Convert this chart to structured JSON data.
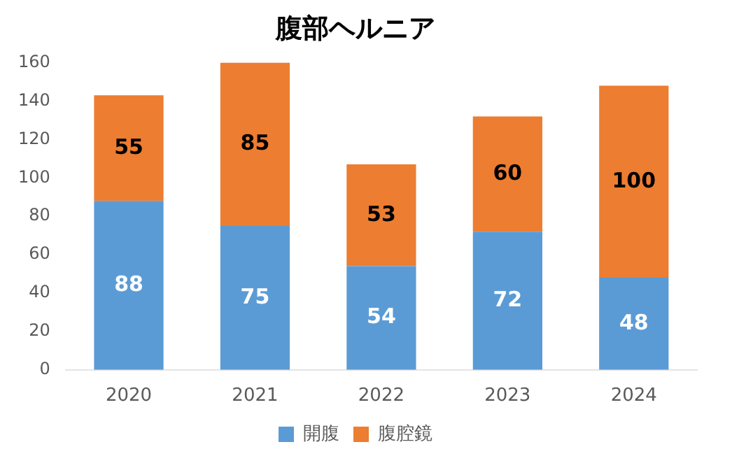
{
  "chart_data": {
    "type": "bar",
    "title": "腹部ヘルニア",
    "categories": [
      "2020",
      "2021",
      "2022",
      "2023",
      "2024"
    ],
    "stacked": true,
    "data_labels": true,
    "ylim": [
      0,
      160
    ],
    "yticks": [
      0,
      20,
      40,
      60,
      80,
      100,
      120,
      140,
      160
    ],
    "grid": false,
    "legend": "bottom",
    "series": [
      {
        "name": "開腹",
        "color": "#5b9bd5",
        "values": [
          88,
          75,
          54,
          72,
          48
        ]
      },
      {
        "name": "腹腔鏡",
        "color": "#ed7d31",
        "values": [
          55,
          85,
          53,
          60,
          100
        ]
      }
    ]
  }
}
